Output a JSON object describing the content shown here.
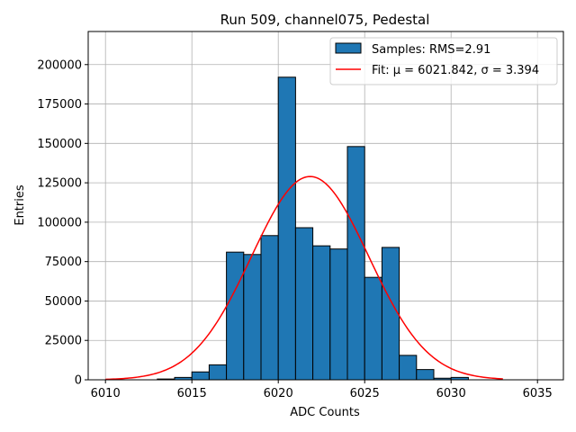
{
  "chart_data": {
    "type": "bar",
    "title": "Run 509, channel075, Pedestal",
    "xlabel": "ADC Counts",
    "ylabel": "Entries",
    "xlim": [
      6009,
      6036.5
    ],
    "ylim": [
      0,
      221000
    ],
    "xticks": [
      6010,
      6015,
      6020,
      6025,
      6030,
      6035
    ],
    "yticks": [
      0,
      25000,
      50000,
      75000,
      100000,
      125000,
      150000,
      175000,
      200000
    ],
    "grid": true,
    "legend_position": "top-right",
    "bin_width": 1,
    "bins": [
      {
        "x": 6013,
        "value": 500
      },
      {
        "x": 6014,
        "value": 1500
      },
      {
        "x": 6015,
        "value": 5000
      },
      {
        "x": 6016,
        "value": 9500
      },
      {
        "x": 6017,
        "value": 81000
      },
      {
        "x": 6018,
        "value": 79500
      },
      {
        "x": 6019,
        "value": 91500
      },
      {
        "x": 6020,
        "value": 192000
      },
      {
        "x": 6021,
        "value": 96500
      },
      {
        "x": 6022,
        "value": 85000
      },
      {
        "x": 6023,
        "value": 83000
      },
      {
        "x": 6024,
        "value": 148000
      },
      {
        "x": 6025,
        "value": 65000
      },
      {
        "x": 6026,
        "value": 84000
      },
      {
        "x": 6027,
        "value": 15500
      },
      {
        "x": 6028,
        "value": 6500
      },
      {
        "x": 6029,
        "value": 1000
      },
      {
        "x": 6030,
        "value": 1500
      }
    ],
    "fit": {
      "mu": 6021.842,
      "sigma": 3.394,
      "amplitude": 129000,
      "x_range": [
        6010,
        6033
      ]
    },
    "series": [
      {
        "name": "Samples: RMS=2.91",
        "kind": "histogram",
        "color": "#1f77b4"
      },
      {
        "name": "Fit: μ = 6021.842, σ = 3.394",
        "kind": "line",
        "color": "#ff0000"
      }
    ],
    "colors": {
      "bar_fill": "#1f77b4",
      "bar_edge": "#000000",
      "fit_line": "#ff0000",
      "grid": "#b0b0b0"
    }
  }
}
